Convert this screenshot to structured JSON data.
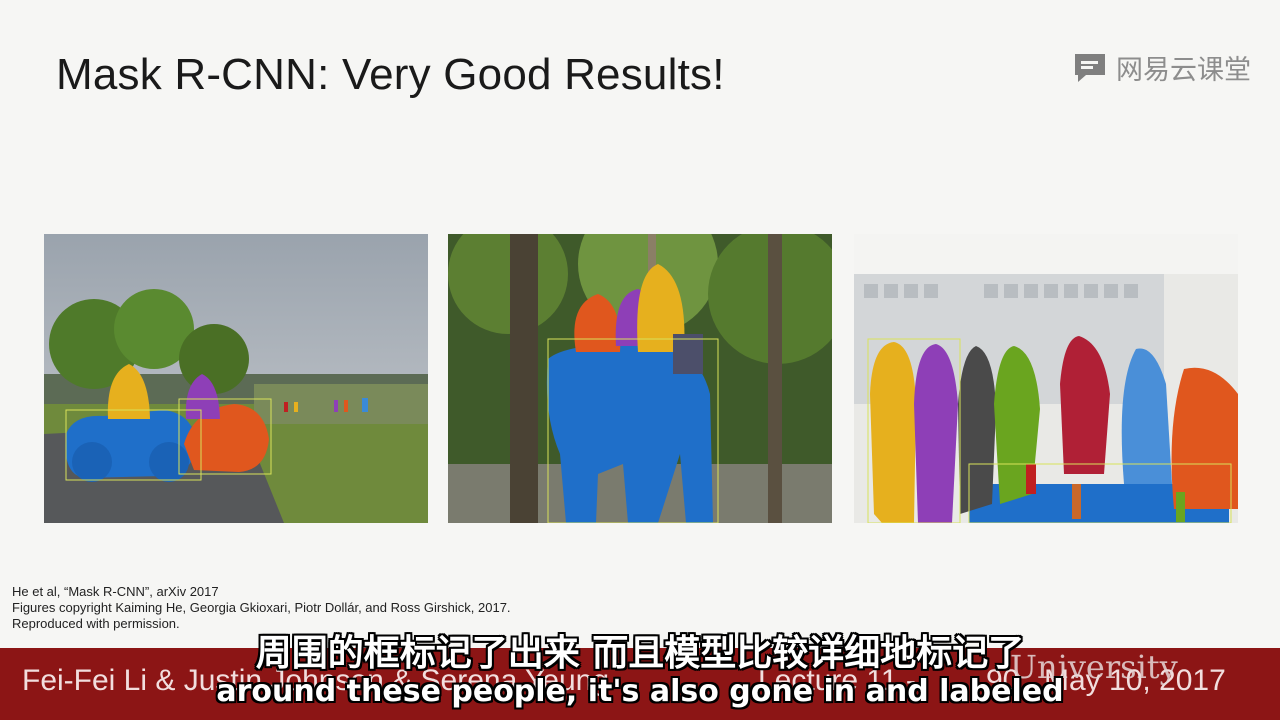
{
  "slide": {
    "title": "Mask R-CNN: Very Good Results!",
    "watermark": "网易云课堂",
    "citation": {
      "line1": "He et al, “Mask R-CNN”, arXiv 2017",
      "line2": "Figures copyright Kaiming He, Georgia Gkioxari, Piotr Dollár, and Ross Girshick, 2017.",
      "line3": "Reproduced with permission."
    },
    "footer": {
      "authors": "Fei-Fei Li & Justin Johnson & Serena Yeung",
      "lecture": "Lecture 11 -",
      "page": "90",
      "date": "May 10, 2017",
      "university": "University"
    }
  },
  "subtitles": {
    "chinese": "周围的框标记了出来  而且模型比较详细地标记了",
    "english": "around these people, it's also gone in and labeled"
  },
  "colors": {
    "footer_bg": "#8c1515",
    "mask_blue": "#1f6fc9",
    "mask_orange": "#e0571e",
    "mask_yellow": "#e6b01e",
    "mask_purple": "#8e3fb7",
    "mask_green": "#6aa51f",
    "mask_red": "#b02036"
  }
}
